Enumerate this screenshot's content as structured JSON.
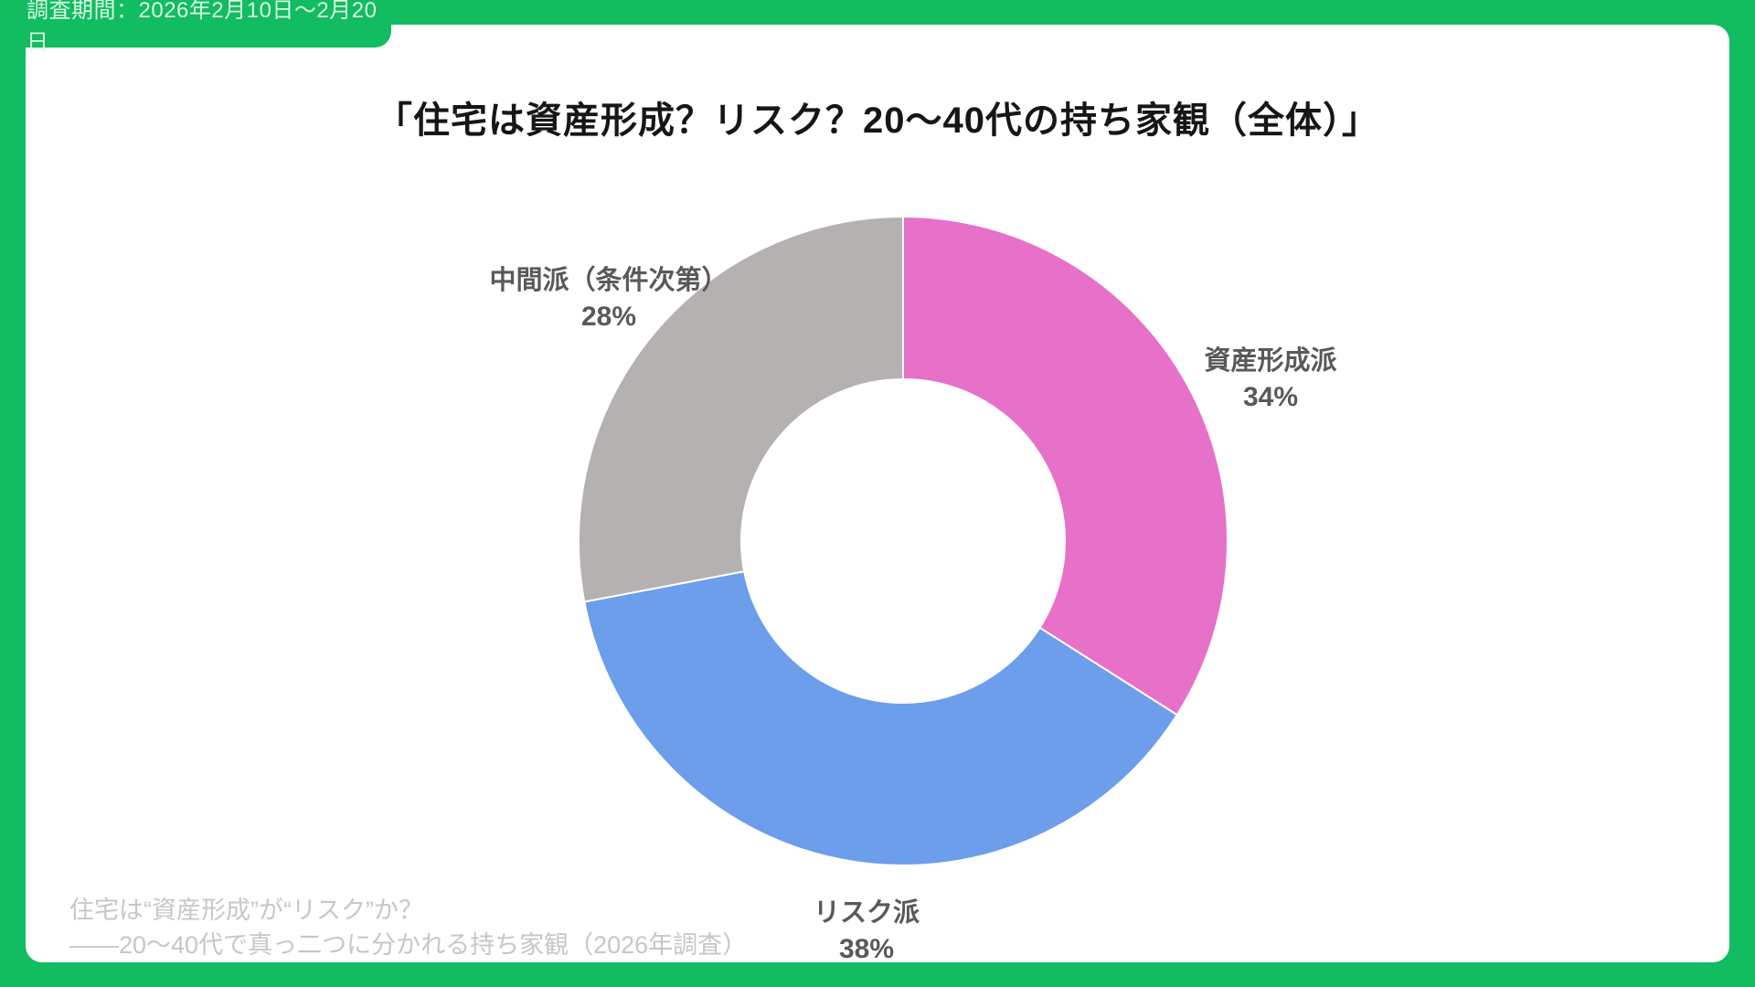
{
  "badge": {
    "label": "調査期間：2026年2月10日〜2月20日"
  },
  "title": "「住宅は資産形成？リスク？20〜40代の持ち家観（全体）」",
  "footer": {
    "line1": "住宅は“資産形成”が“リスク”か？",
    "line2": "——20〜40代で真っ二つに分かれる持ち家観（2026年調査）"
  },
  "colors": {
    "frame_green": "#12BC60",
    "badge_text": "#D9F6E5",
    "title_text": "#161616",
    "slice_label_text": "#5B5858",
    "footer_text": "#C8C6C6"
  },
  "chart_data": {
    "type": "pie",
    "subtype": "donut",
    "title": "「住宅は資産形成？リスク？20〜40代の持ち家観（全体）」",
    "start_angle": "top",
    "direction": "clockwise",
    "categories": [
      "資産形成派",
      "リスク派",
      "中間派（条件次第）"
    ],
    "values": [
      34,
      38,
      28
    ],
    "unit": "%",
    "value_labels": [
      "34%",
      "38%",
      "28%"
    ],
    "colors": [
      "#E770C9",
      "#6D9EEB",
      "#B5B1B1"
    ],
    "legend_position": "none",
    "labels_position": "outside"
  }
}
